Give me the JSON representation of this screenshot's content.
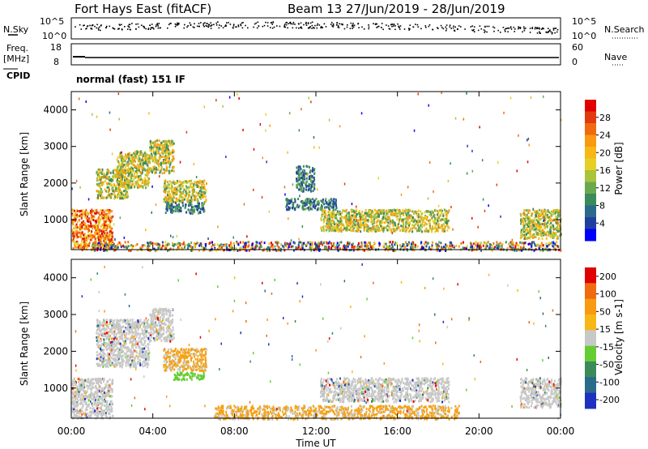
{
  "header": {
    "station": "Fort Hays East (fitACF)",
    "beam_info": "Beam 13  27/Jun/2019 - 28/Jun/2019"
  },
  "noise_panel": {
    "left_label": "N.Sky",
    "right_label": "N.Search",
    "ticks_left": [
      "10^5",
      "10^0"
    ],
    "ticks_right": [
      "10^5",
      "10^0"
    ]
  },
  "freq_panel": {
    "left_label_1": "Freq.",
    "left_label_2": "[MHz]",
    "right_label": "Nave",
    "ticks_left": [
      "18",
      "8"
    ],
    "ticks_right": [
      "60",
      "0"
    ]
  },
  "cpid": {
    "label": "CPID",
    "value": "normal (fast) 151 IF"
  },
  "chart_data": [
    {
      "type": "heatmap",
      "name": "power",
      "ylabel": "Slant Range [km]",
      "xlabel": "Time UT",
      "ylim": [
        180,
        4500
      ],
      "xlim": [
        0,
        24
      ],
      "x_ticks": [
        "00:00",
        "04:00",
        "08:00",
        "12:00",
        "16:00",
        "20:00",
        "00:00"
      ],
      "y_ticks": [
        "1000",
        "2000",
        "3000",
        "4000"
      ],
      "colorbar": {
        "label": "Power [dB]",
        "tick_labels": [
          "4",
          "8",
          "12",
          "16",
          "20",
          "24",
          "28"
        ],
        "colors": [
          "#0000ff",
          "#2040a0",
          "#2a6a8a",
          "#3a8a5a",
          "#6aa84f",
          "#a9c33a",
          "#e6d028",
          "#f7b716",
          "#f89a12",
          "#f06a10",
          "#e23a10",
          "#e00000"
        ]
      },
      "regions": [
        {
          "t0": 0.0,
          "t1": 2.0,
          "r0": 200,
          "r1": 1300,
          "level": "high"
        },
        {
          "t0": 1.2,
          "t1": 2.8,
          "r0": 1600,
          "r1": 2400,
          "level": "mid"
        },
        {
          "t0": 2.2,
          "t1": 3.8,
          "r0": 1900,
          "r1": 2900,
          "level": "mid"
        },
        {
          "t0": 3.8,
          "t1": 5.0,
          "r0": 2300,
          "r1": 3200,
          "level": "mid"
        },
        {
          "t0": 4.5,
          "t1": 6.6,
          "r0": 1500,
          "r1": 2100,
          "level": "mid"
        },
        {
          "t0": 4.6,
          "t1": 6.5,
          "r0": 1200,
          "r1": 1500,
          "level": "low"
        },
        {
          "t0": 12.2,
          "t1": 18.5,
          "r0": 700,
          "r1": 1300,
          "level": "mid"
        },
        {
          "t0": 10.5,
          "t1": 13.0,
          "r0": 1300,
          "r1": 1600,
          "level": "low"
        },
        {
          "t0": 11.0,
          "t1": 11.9,
          "r0": 1800,
          "r1": 2500,
          "level": "low"
        },
        {
          "t0": 22.0,
          "t1": 24.0,
          "r0": 500,
          "r1": 1300,
          "level": "mid"
        },
        {
          "t0": 1.0,
          "t1": 24.0,
          "r0": 180,
          "r1": 420,
          "level": "band"
        }
      ]
    },
    {
      "type": "heatmap",
      "name": "velocity",
      "ylabel": "Slant Range [km]",
      "xlabel": "Time UT",
      "ylim": [
        180,
        4500
      ],
      "xlim": [
        0,
        24
      ],
      "x_ticks": [
        "00:00",
        "04:00",
        "08:00",
        "12:00",
        "16:00",
        "20:00",
        "00:00"
      ],
      "y_ticks": [
        "1000",
        "2000",
        "3000",
        "4000"
      ],
      "colorbar": {
        "label": "Velocity [m s-1]",
        "tick_labels": [
          "200",
          "100",
          "50",
          "15",
          "-15",
          "-50",
          "-100",
          "-200"
        ],
        "colors": [
          "#2030c0",
          "#2a6a8a",
          "#3a8a5a",
          "#66cc33",
          "#c8c8c8",
          "#f7b716",
          "#f89a12",
          "#f06a10",
          "#e00000"
        ]
      },
      "regions": [
        {
          "t0": 0.0,
          "t1": 2.0,
          "r0": 200,
          "r1": 1300,
          "level": "grey"
        },
        {
          "t0": 1.2,
          "t1": 3.8,
          "r0": 1600,
          "r1": 2900,
          "level": "grey"
        },
        {
          "t0": 3.8,
          "t1": 5.0,
          "r0": 2300,
          "r1": 3200,
          "level": "grey"
        },
        {
          "t0": 4.5,
          "t1": 6.6,
          "r0": 1500,
          "r1": 2100,
          "level": "orange"
        },
        {
          "t0": 5.0,
          "t1": 6.5,
          "r0": 1250,
          "r1": 1450,
          "level": "green"
        },
        {
          "t0": 12.2,
          "t1": 18.5,
          "r0": 650,
          "r1": 1300,
          "level": "grey"
        },
        {
          "t0": 22.0,
          "t1": 24.0,
          "r0": 500,
          "r1": 1300,
          "level": "grey"
        },
        {
          "t0": 7.0,
          "t1": 19.0,
          "r0": 180,
          "r1": 550,
          "level": "orange"
        }
      ]
    }
  ],
  "colors": {
    "grey": "#c8c8c8",
    "orange": "#f5a214",
    "green": "#66cc33",
    "axis": "#000000"
  }
}
